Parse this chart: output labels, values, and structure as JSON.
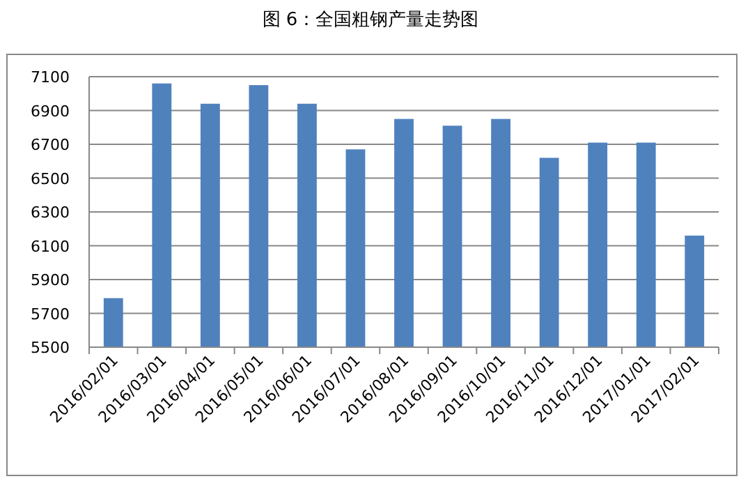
{
  "chart_data": {
    "type": "bar",
    "title": "图 6：全国粗钢产量走势图",
    "categories": [
      "2016/02/01",
      "2016/03/01",
      "2016/04/01",
      "2016/05/01",
      "2016/06/01",
      "2016/07/01",
      "2016/08/01",
      "2016/09/01",
      "2016/10/01",
      "2016/11/01",
      "2016/12/01",
      "2017/01/01",
      "2017/02/01"
    ],
    "values": [
      5790,
      7060,
      6940,
      7050,
      6940,
      6670,
      6850,
      6810,
      6850,
      6620,
      6710,
      6710,
      6160
    ],
    "color": "#4f81bd",
    "ylim": [
      5500,
      7100
    ],
    "yticks": [
      5500,
      5700,
      5900,
      6100,
      6300,
      6500,
      6700,
      6900,
      7100
    ],
    "grid": "y"
  }
}
